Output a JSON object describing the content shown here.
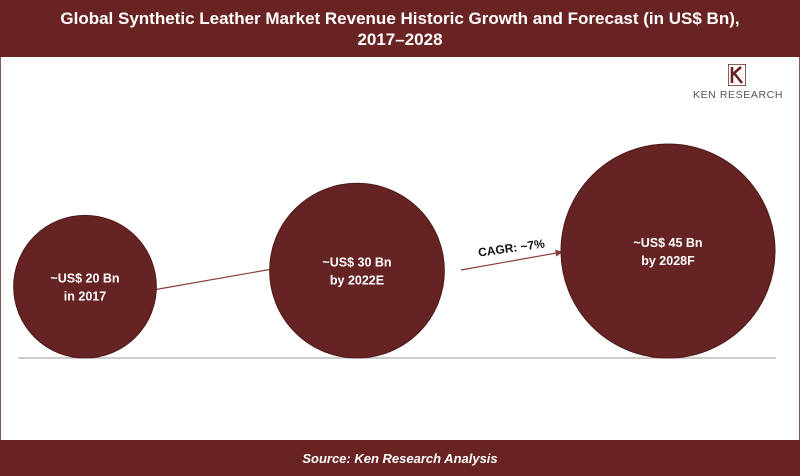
{
  "header": {
    "title_line1": "Global Synthetic Leather Market Revenue Historic Growth and Forecast (in US$ Bn),",
    "title_line2": "2017–2028"
  },
  "logo": {
    "text": "KEN RESEARCH",
    "icon": "ken-research-k-logo"
  },
  "footer": {
    "source": "Source: Ken Research Analysis"
  },
  "colors": {
    "brand": "#6a2323",
    "bubble": "#652323",
    "arrow": "#8b3a3a",
    "baseline": "#999999"
  },
  "chart_data": {
    "type": "bubble",
    "unit": "US$ Bn",
    "points": [
      {
        "year": "2017",
        "value": 20,
        "line1": "~US$ 20 Bn",
        "line2": "in 2017"
      },
      {
        "year": "2022E",
        "value": 30,
        "line1": "~US$ 30 Bn",
        "line2": "by 2022E"
      },
      {
        "year": "2028F",
        "value": 45,
        "line1": "~US$ 45 Bn",
        "line2": "by 2028F"
      }
    ],
    "annotations": [
      {
        "text": "CAGR: ~7%",
        "from": "2022E",
        "to": "2028F"
      }
    ]
  }
}
